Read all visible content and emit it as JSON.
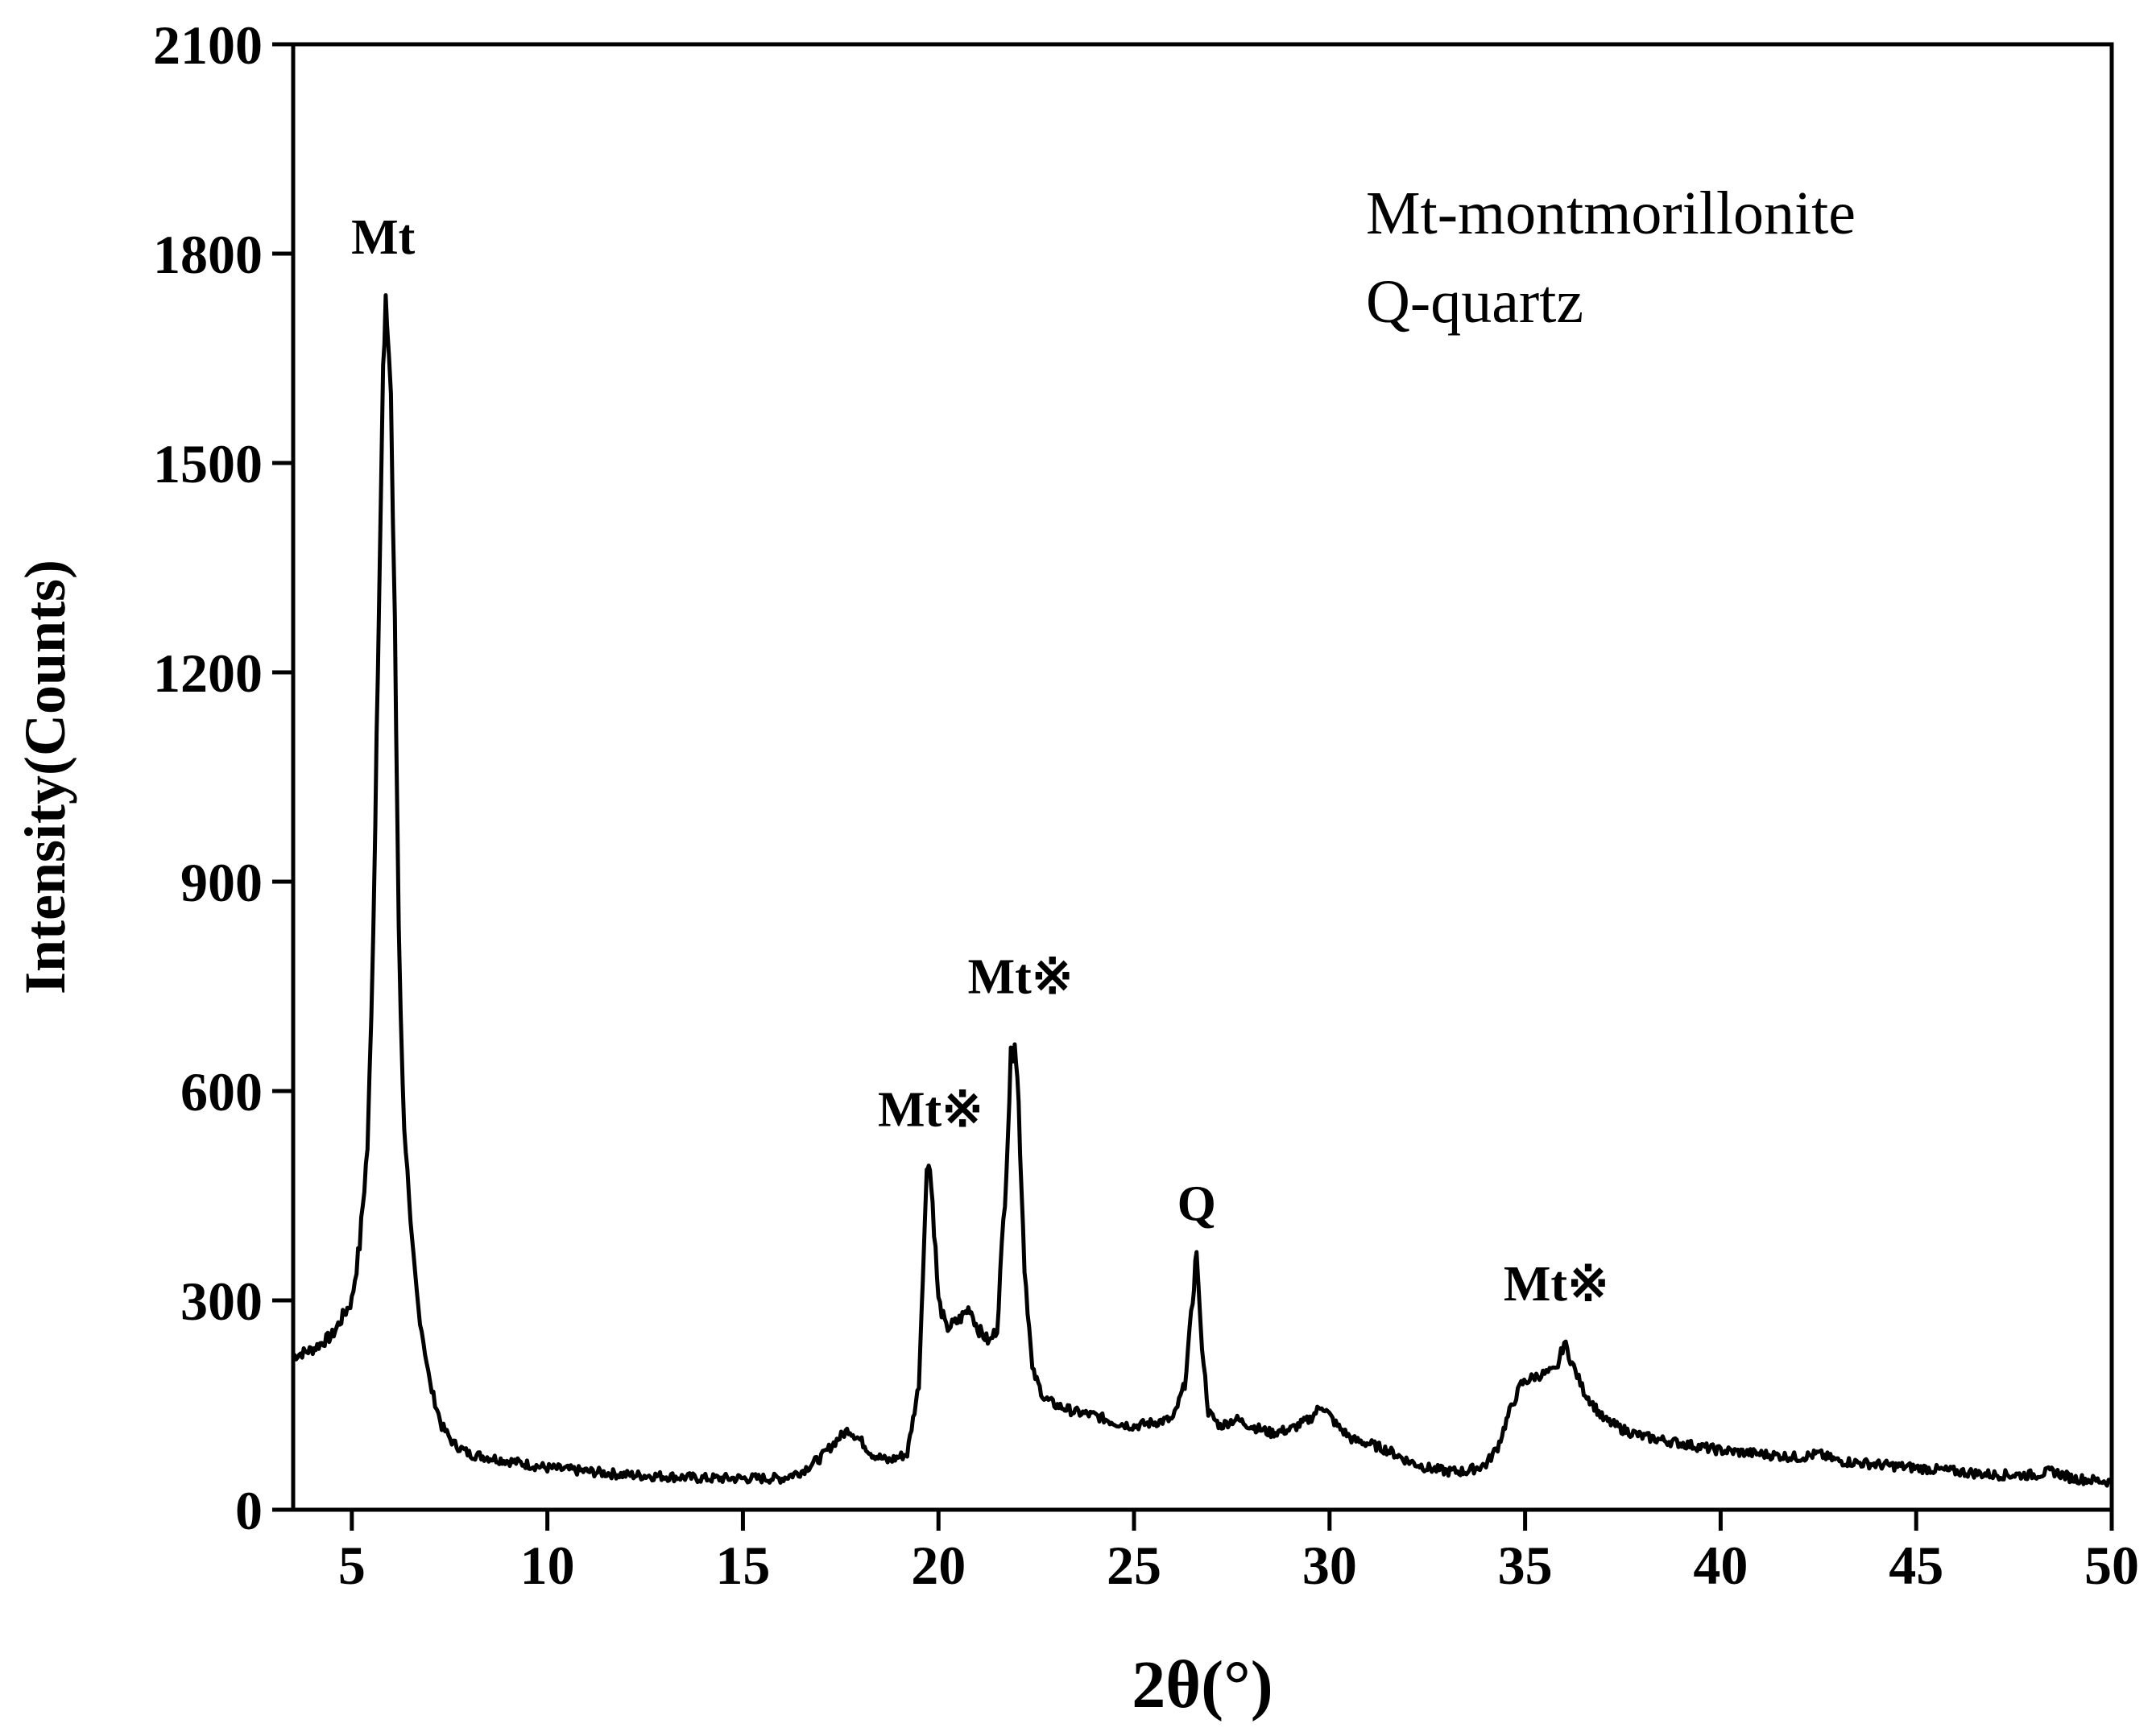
{
  "chart_data": {
    "type": "line",
    "xlabel": "2θ(°)",
    "ylabel": "Intensity(Counts)",
    "xlim": [
      3.5,
      50
    ],
    "ylim": [
      0,
      2100
    ],
    "x_ticks": [
      5,
      10,
      15,
      20,
      25,
      30,
      35,
      40,
      45,
      50
    ],
    "y_ticks": [
      0,
      300,
      600,
      900,
      1200,
      1500,
      1800,
      2100
    ],
    "grid": false,
    "line_color": "#000000",
    "series": [
      {
        "x": [
          3.5,
          4.0,
          4.5,
          5.0,
          5.2,
          5.4,
          5.5,
          5.6,
          5.7,
          5.8,
          5.9,
          6.0,
          6.1,
          6.2,
          6.3,
          6.5,
          6.7,
          7.0,
          7.3,
          7.6,
          8.0,
          8.5,
          9.0,
          10.0,
          11.0,
          12.0,
          13.0,
          14.0,
          15.0,
          16.0,
          16.5,
          17.0,
          17.4,
          17.7,
          18.0,
          18.3,
          18.7,
          19.2,
          19.5,
          19.6,
          19.7,
          19.75,
          19.85,
          20.0,
          20.2,
          20.5,
          20.8,
          21.0,
          21.3,
          21.5,
          21.7,
          21.85,
          21.95,
          22.05,
          22.2,
          22.4,
          22.7,
          23.0,
          23.5,
          24.0,
          24.5,
          25.0,
          25.5,
          26.0,
          26.3,
          26.5,
          26.6,
          26.7,
          26.9,
          27.2,
          27.6,
          28.0,
          28.5,
          29.0,
          29.5,
          29.8,
          30.2,
          30.6,
          31.0,
          31.5,
          32.0,
          32.5,
          33.0,
          33.5,
          34.0,
          34.3,
          34.6,
          34.9,
          35.2,
          35.5,
          35.8,
          36.0,
          36.2,
          36.5,
          37.0,
          37.5,
          38.0,
          39.0,
          40.0,
          41.0,
          42.0,
          42.5,
          43.0,
          44.0,
          45.0,
          46.0,
          47.0,
          48.0,
          48.5,
          49.0,
          50.0
        ],
        "y": [
          220,
          230,
          250,
          300,
          380,
          520,
          700,
          1000,
          1350,
          1620,
          1720,
          1600,
          1250,
          850,
          600,
          400,
          290,
          180,
          120,
          95,
          80,
          75,
          70,
          60,
          55,
          50,
          48,
          45,
          45,
          45,
          55,
          75,
          100,
          115,
          100,
          80,
          70,
          80,
          180,
          340,
          480,
          510,
          440,
          300,
          260,
          270,
          290,
          260,
          240,
          260,
          450,
          640,
          690,
          580,
          350,
          200,
          160,
          150,
          140,
          135,
          125,
          120,
          125,
          130,
          180,
          300,
          375,
          260,
          140,
          120,
          130,
          120,
          110,
          115,
          130,
          150,
          120,
          100,
          95,
          85,
          70,
          60,
          55,
          55,
          65,
          90,
          140,
          180,
          190,
          195,
          200,
          240,
          210,
          170,
          130,
          115,
          105,
          95,
          85,
          80,
          75,
          80,
          70,
          65,
          60,
          55,
          50,
          50,
          55,
          45,
          40
        ]
      }
    ],
    "annotations": [
      {
        "text": "Mt",
        "x": 5.8,
        "y": 1800
      },
      {
        "text": "Mt※",
        "x": 19.8,
        "y": 550
      },
      {
        "text": "Mt※",
        "x": 22.1,
        "y": 740
      },
      {
        "text": "Q",
        "x": 26.6,
        "y": 415
      },
      {
        "text": "Mt※",
        "x": 35.8,
        "y": 300
      }
    ],
    "legend_lines": [
      "Mt-montmorillonite",
      "Q-quartz"
    ]
  }
}
